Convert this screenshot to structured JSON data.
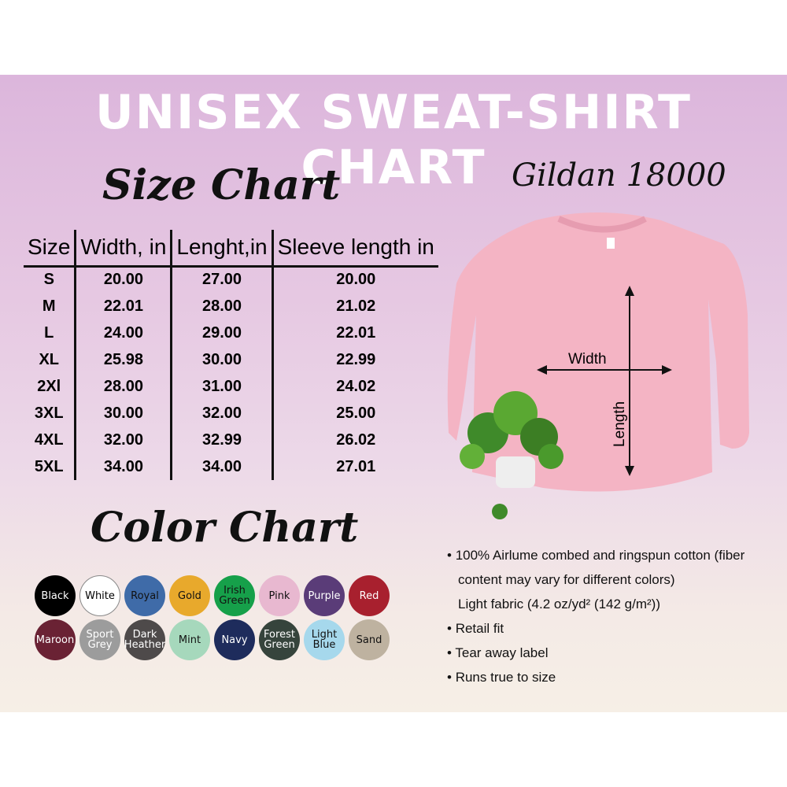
{
  "title": "UNISEX SWEAT-SHIRT CHART",
  "size_heading": "Size Chart",
  "model": "Gildan 18000",
  "size_table": {
    "headers": [
      "Size",
      "Width, in",
      "Lenght,in",
      "Sleeve length in"
    ],
    "rows": [
      [
        "S",
        "20.00",
        "27.00",
        "20.00"
      ],
      [
        "M",
        "22.01",
        "28.00",
        "21.02"
      ],
      [
        "L",
        "24.00",
        "29.00",
        "22.01"
      ],
      [
        "XL",
        "25.98",
        "30.00",
        "22.99"
      ],
      [
        "2Xl",
        "28.00",
        "31.00",
        "24.02"
      ],
      [
        "3XL",
        "30.00",
        "32.00",
        "25.00"
      ],
      [
        "4XL",
        "32.00",
        "32.99",
        "26.02"
      ],
      [
        "5XL",
        "34.00",
        "34.00",
        "27.01"
      ]
    ]
  },
  "color_heading": "Color Chart",
  "colors": [
    {
      "name": "Black",
      "hex": "#000000",
      "text": "#ffffff"
    },
    {
      "name": "White",
      "hex": "#ffffff",
      "text": "#000000"
    },
    {
      "name": "Royal",
      "hex": "#3f6ba8",
      "text": "#111111"
    },
    {
      "name": "Gold",
      "hex": "#e8a92c",
      "text": "#111111"
    },
    {
      "name": "Irish Green",
      "hex": "#16a04a",
      "text": "#111111"
    },
    {
      "name": "Pink",
      "hex": "#e8b8d0",
      "text": "#111111"
    },
    {
      "name": "Purple",
      "hex": "#5a3c78",
      "text": "#ffffff"
    },
    {
      "name": "Red",
      "hex": "#a8202e",
      "text": "#ffffff"
    },
    {
      "name": "Maroon",
      "hex": "#6a2234",
      "text": "#ffffff"
    },
    {
      "name": "Sport Grey",
      "hex": "#9c9c9c",
      "text": "#ffffff"
    },
    {
      "name": "Dark Heather",
      "hex": "#4e4a4a",
      "text": "#ffffff"
    },
    {
      "name": "Mint",
      "hex": "#a6d8bc",
      "text": "#111111"
    },
    {
      "name": "Navy",
      "hex": "#1e2c5c",
      "text": "#ffffff"
    },
    {
      "name": "Forest Green",
      "hex": "#36443c",
      "text": "#ffffff"
    },
    {
      "name": "Light Blue",
      "hex": "#a6d8ec",
      "text": "#111111"
    },
    {
      "name": "Sand",
      "hex": "#beb2a0",
      "text": "#111111"
    }
  ],
  "diagram": {
    "width_label": "Width",
    "length_label": "Length",
    "shirt_color": "#f4b4c4"
  },
  "features": [
    {
      "text": "100% Airlume combed and ringspun cotton (fiber",
      "bullet": true
    },
    {
      "text": "content may vary for different colors)",
      "bullet": false
    },
    {
      "text": "Light fabric (4.2 oz/yd² (142 g/m²))",
      "bullet": false
    },
    {
      "text": "Retail fit",
      "bullet": true
    },
    {
      "text": "Tear away label",
      "bullet": true
    },
    {
      "text": "Runs true to size",
      "bullet": true
    }
  ]
}
